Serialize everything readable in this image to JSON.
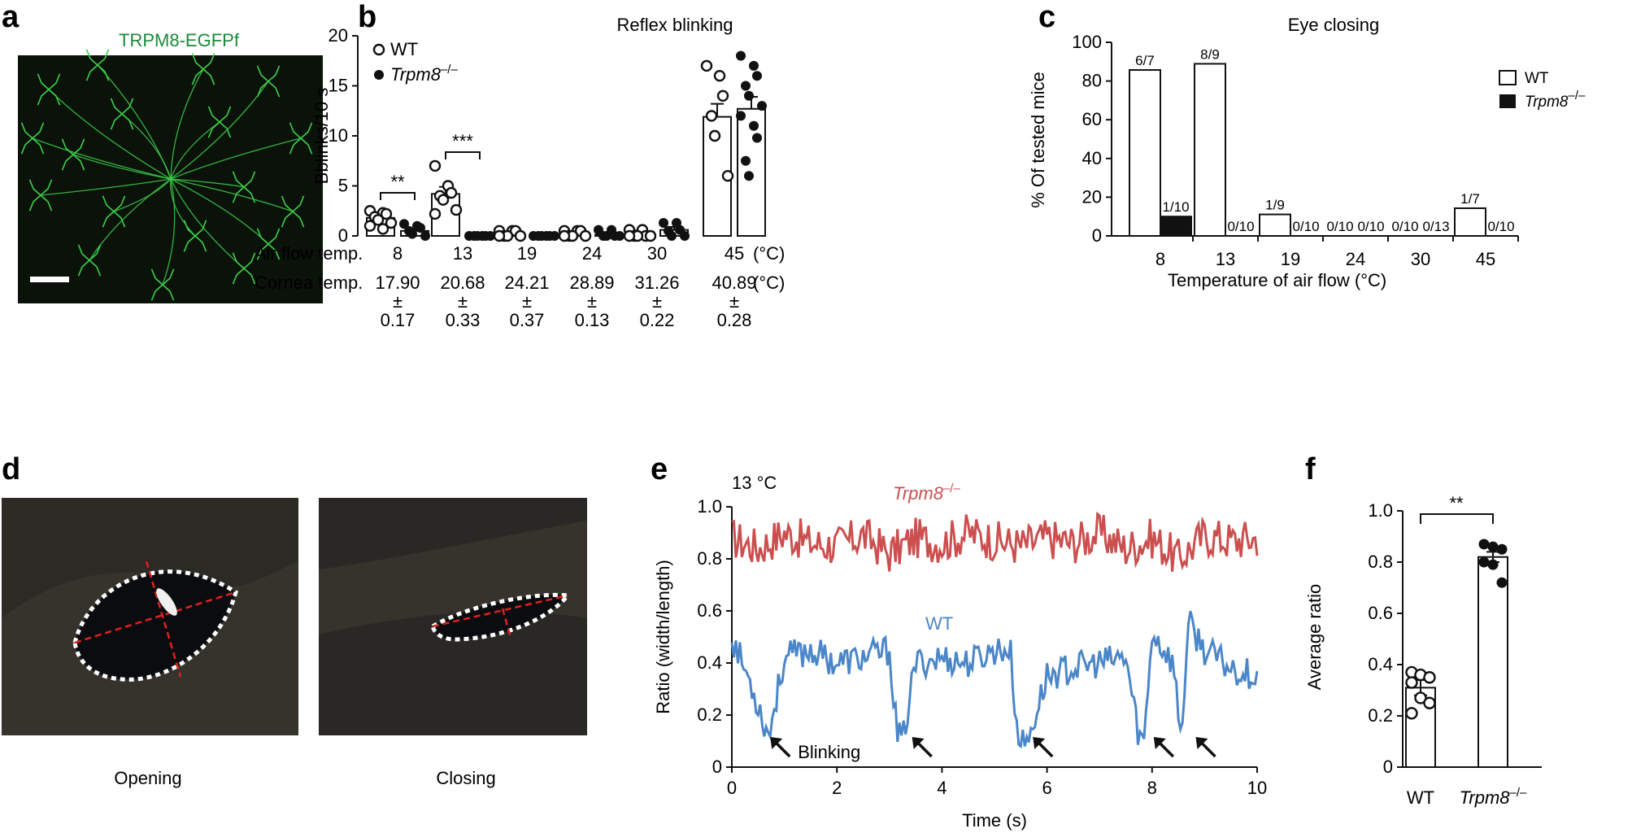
{
  "panels": {
    "a": {
      "label": "a",
      "caption": "TRPM8-EGFPf",
      "caption_color": "#1a8a3a"
    },
    "b": {
      "label": "b"
    },
    "c": {
      "label": "c"
    },
    "d": {
      "label": "d",
      "left_caption": "Opening",
      "right_caption": "Closing"
    },
    "e": {
      "label": "e"
    },
    "f": {
      "label": "f"
    }
  },
  "colors": {
    "wt_trace": "#4a86c8",
    "ko_trace": "#cc4f4f",
    "micro_green": "#3ccf4a"
  },
  "chart_data": [
    {
      "id": "b",
      "type": "bar",
      "title": "Reflex blinking",
      "ylabel": "Bblinks/10 s",
      "ylim": [
        0,
        20
      ],
      "yticks": [
        "0",
        "5",
        "10",
        "15",
        "20"
      ],
      "categories": [
        "8",
        "13",
        "19",
        "24",
        "30",
        "45"
      ],
      "category_unit": "(°C)",
      "row_labels": {
        "air": "Air flow temp.",
        "cornea": "Cornea temp.",
        "pm": "±"
      },
      "cornea_means": [
        "17.90",
        "20.68",
        "24.21",
        "28.89",
        "31.26",
        "40.89"
      ],
      "cornea_unit": "(°C)",
      "cornea_sem": [
        "0.17",
        "0.33",
        "0.37",
        "0.13",
        "0.22",
        "0.28"
      ],
      "legend": [
        "WT",
        "Trpm8–/–"
      ],
      "ko_sup": "–/–",
      "series": [
        {
          "name": "WT",
          "values": [
            1.8,
            4.2,
            0.3,
            0.3,
            0.4,
            11.9
          ],
          "sem": [
            0.3,
            0.7,
            0.15,
            0.15,
            0.15,
            1.3
          ],
          "points": [
            [
              2.5,
              2.3,
              2.2,
              1.9,
              1.6,
              1.3,
              1.0,
              0.7
            ],
            [
              7,
              5,
              4.3,
              4,
              3.6,
              2.6,
              2.2
            ],
            [
              0.5,
              0.5,
              0.5,
              0,
              0,
              0,
              0
            ],
            [
              0.5,
              0.5,
              0.5,
              0,
              0,
              0,
              0
            ],
            [
              0.6,
              0.6,
              0,
              0,
              0,
              0,
              0
            ],
            [
              17,
              16,
              14,
              12,
              10,
              6
            ]
          ]
        },
        {
          "name": "Trpm8–/–",
          "values": [
            0.5,
            0.1,
            0.05,
            0.1,
            0.6,
            12.7
          ],
          "sem": [
            0.2,
            0.1,
            0.05,
            0.1,
            0.3,
            1.2
          ],
          "points": [
            [
              1.2,
              1.0,
              0.8,
              0.5,
              0.2,
              0
            ],
            [
              0,
              0,
              0,
              0,
              0,
              0
            ],
            [
              0,
              0,
              0,
              0,
              0,
              0
            ],
            [
              0.6,
              0.6,
              0,
              0,
              0,
              0
            ],
            [
              1.3,
              1.3,
              0.6,
              0.5,
              0,
              0
            ],
            [
              18,
              17,
              16,
              15,
              14,
              13,
              12,
              11,
              9.8,
              7.5,
              6
            ]
          ]
        }
      ],
      "significance": [
        {
          "group": "8",
          "label": "**"
        },
        {
          "group": "13",
          "label": "***"
        }
      ]
    },
    {
      "id": "c",
      "type": "bar",
      "title": "Eye closing",
      "ylabel": "% Of tested mice",
      "xlabel": "Temperature of air flow (°C)",
      "ylim": [
        0,
        100
      ],
      "yticks": [
        "0",
        "20",
        "40",
        "60",
        "80",
        "100"
      ],
      "categories": [
        "8",
        "13",
        "19",
        "24",
        "30",
        "45"
      ],
      "legend": [
        "WT",
        "Trpm8–/–"
      ],
      "ko_sup": "–/–",
      "series": [
        {
          "name": "WT",
          "values": [
            85.7,
            88.9,
            11.1,
            0,
            0,
            14.3
          ],
          "labels": [
            "6/7",
            "8/9",
            "1/9",
            "0/10",
            "0/10",
            "1/7"
          ]
        },
        {
          "name": "Trpm8–/–",
          "values": [
            10,
            0,
            0,
            0,
            0,
            0
          ],
          "labels": [
            "1/10",
            "0/10",
            "0/10",
            "0/10",
            "0/13",
            "0/10"
          ]
        }
      ]
    },
    {
      "id": "e",
      "type": "line",
      "annotation": "13 °C",
      "xlabel": "Time (s)",
      "ylabel": "Ratio (width/length)",
      "xlim": [
        0,
        10
      ],
      "ylim": [
        0,
        1
      ],
      "xticks": [
        "0",
        "2",
        "4",
        "6",
        "8",
        "10"
      ],
      "yticks": [
        "0",
        "0.2",
        "0.4",
        "0.6",
        "0.8",
        "1.0"
      ],
      "series": [
        {
          "name": "Trpm8–/–",
          "name_sup": "–/–",
          "mean": 0.87,
          "range": [
            0.73,
            0.99
          ],
          "x": [
            0,
            0.5,
            1,
            1.5,
            2,
            2.5,
            3,
            3.5,
            4,
            4.5,
            5,
            5.5,
            6,
            6.5,
            7,
            7.5,
            8,
            8.5,
            9,
            9.5,
            10
          ],
          "y": [
            0.88,
            0.84,
            0.9,
            0.86,
            0.85,
            0.89,
            0.82,
            0.88,
            0.86,
            0.9,
            0.87,
            0.85,
            0.88,
            0.86,
            0.9,
            0.84,
            0.88,
            0.8,
            0.89,
            0.87,
            0.88
          ]
        },
        {
          "name": "WT",
          "mean": 0.4,
          "range": [
            0.08,
            0.62
          ],
          "x": [
            0,
            0.4,
            0.7,
            1.0,
            1.5,
            2.0,
            2.5,
            3.0,
            3.15,
            3.25,
            3.5,
            4.0,
            4.5,
            5.0,
            5.3,
            5.45,
            5.6,
            6.0,
            6.5,
            7.0,
            7.5,
            7.75,
            7.85,
            8.0,
            8.4,
            8.55,
            8.7,
            9.0,
            9.5,
            10
          ],
          "y": [
            0.5,
            0.3,
            0.12,
            0.42,
            0.45,
            0.4,
            0.42,
            0.45,
            0.12,
            0.1,
            0.4,
            0.42,
            0.4,
            0.45,
            0.45,
            0.1,
            0.08,
            0.35,
            0.38,
            0.4,
            0.42,
            0.12,
            0.1,
            0.52,
            0.4,
            0.12,
            0.55,
            0.45,
            0.38,
            0.35
          ]
        }
      ],
      "blink_label": "Blinking",
      "blink_times": [
        0.7,
        3.4,
        5.7,
        8.0,
        8.8
      ]
    },
    {
      "id": "f",
      "type": "bar",
      "ylabel": "Average ratio",
      "ylim": [
        0,
        1
      ],
      "yticks": [
        "0",
        "0.2",
        "0.4",
        "0.6",
        "0.8",
        "1.0"
      ],
      "categories": [
        "WT",
        "Trpm8–/–"
      ],
      "ko_sup": "–/–",
      "values": [
        0.31,
        0.82
      ],
      "sem": [
        0.03,
        0.02
      ],
      "points": [
        [
          0.37,
          0.36,
          0.35,
          0.33,
          0.27,
          0.25,
          0.21
        ],
        [
          0.87,
          0.86,
          0.85,
          0.8,
          0.79,
          0.72
        ]
      ],
      "significance": "**"
    }
  ]
}
